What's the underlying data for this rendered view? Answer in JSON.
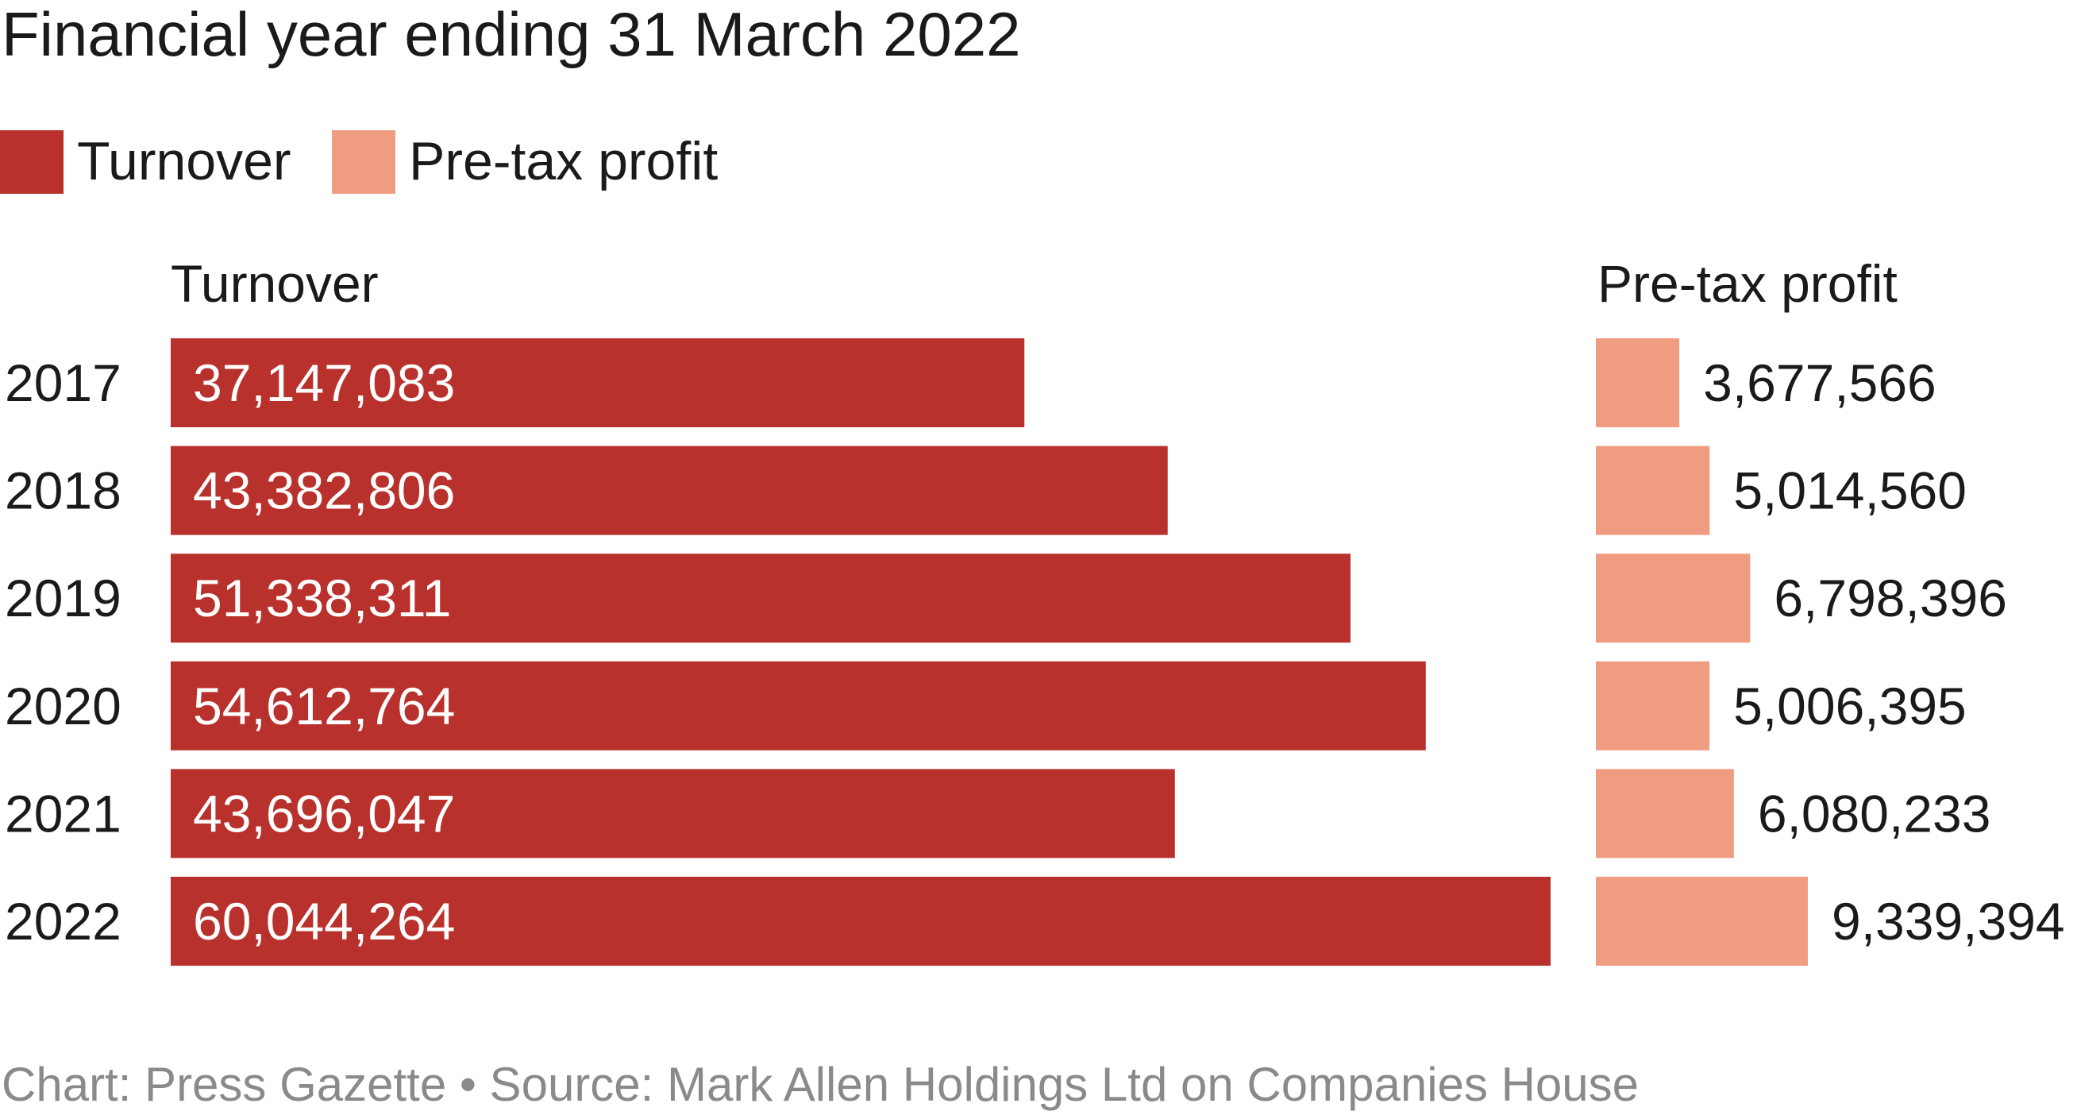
{
  "chart_data": {
    "type": "bar",
    "subtitle": "Financial year ending 31 March 2022",
    "categories": [
      "2017",
      "2018",
      "2019",
      "2020",
      "2021",
      "2022"
    ],
    "series": [
      {
        "name": "Turnover",
        "values": [
          37147083,
          43382806,
          51338311,
          54612764,
          43696047,
          60044264
        ],
        "labels": [
          "37,147,083",
          "43,382,806",
          "51,338,311",
          "54,612,764",
          "43,696,047",
          "60,044,264"
        ],
        "color": "#b9312c"
      },
      {
        "name": "Pre-tax profit",
        "values": [
          3677566,
          5014560,
          6798396,
          5006395,
          6080233,
          9339394
        ],
        "labels": [
          "3,677,566",
          "5,014,560",
          "6,798,396",
          "5,006,395",
          "6,080,233",
          "9,339,394"
        ],
        "color": "#f09c80"
      }
    ],
    "column_headers": [
      "Turnover",
      "Pre-tax profit"
    ],
    "legend": {
      "position": "top-left",
      "entries": [
        "Turnover",
        "Pre-tax profit"
      ]
    },
    "orientation": "horizontal",
    "layout": "split columns",
    "grid": false,
    "source": "Chart: Press Gazette • Source: Mark Allen Holdings Ltd on Companies House"
  }
}
